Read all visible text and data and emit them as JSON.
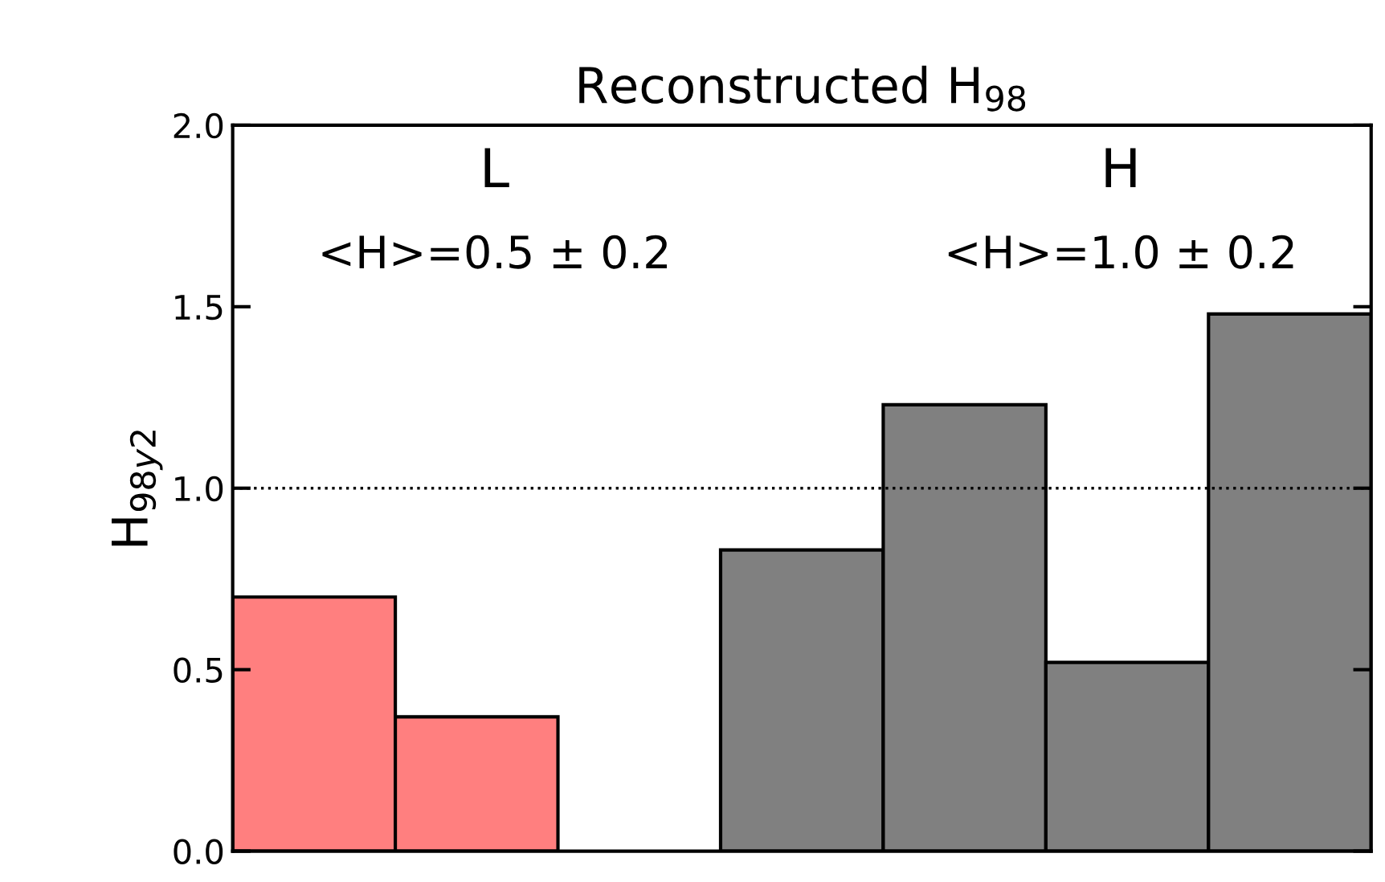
{
  "chart_data": {
    "type": "bar",
    "title": "Reconstructed H$_{98}$",
    "ylabel": "H$_{98y2}$",
    "categories": [
      null,
      null,
      null,
      null,
      null,
      null,
      null
    ],
    "values": [
      0.7,
      0.37,
      null,
      0.83,
      1.23,
      0.52,
      1.48
    ],
    "colors": [
      "#ff7f7f",
      "#ff7f7f",
      "#808080",
      "#808080",
      "#808080",
      "#808080",
      "#808080"
    ],
    "ylim": [
      0,
      2
    ],
    "yticks": [
      {
        "value": 0,
        "label": "0.0"
      },
      {
        "value": 0.5,
        "label": "0.5"
      },
      {
        "value": 1,
        "label": "1.0"
      },
      {
        "value": 1.5,
        "label": "1.5"
      },
      {
        "value": 2,
        "label": "2.0"
      }
    ],
    "tick_labels": "y",
    "grid": false,
    "legend": false,
    "ref_lines": [
      {
        "axis": "y",
        "value": 1,
        "color": "#000000",
        "line_style": "dotted"
      }
    ],
    "annotations": [
      "L",
      "<H>=0.5 ± 0.2",
      "H",
      "<H>=1.0 ± 0.2"
    ]
  }
}
